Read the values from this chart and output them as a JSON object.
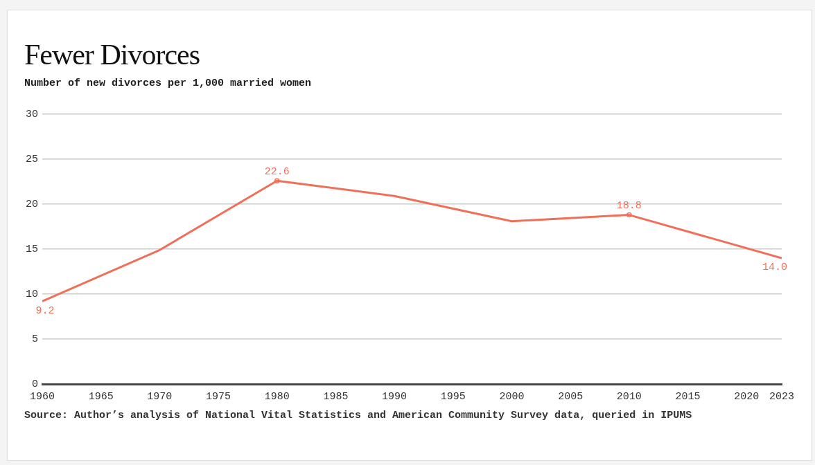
{
  "chart_data": {
    "type": "line",
    "title": "Fewer Divorces",
    "subtitle": "Number of new divorces per 1,000 married women",
    "x": [
      1960,
      1970,
      1980,
      1990,
      2000,
      2010,
      2023
    ],
    "series": [
      {
        "color": "#ef6f58",
        "values": [
          9.2,
          14.9,
          22.6,
          20.9,
          18.1,
          18.8,
          14.0
        ],
        "value_labels": [
          "9.2",
          null,
          "22.6",
          null,
          null,
          "18.8",
          "14.0"
        ]
      }
    ],
    "xlim": [
      1960,
      2023
    ],
    "xticks": [
      1960,
      1965,
      1970,
      1975,
      1980,
      1985,
      1990,
      1995,
      2000,
      2005,
      2010,
      2015,
      2020,
      2023
    ],
    "ylim": [
      0,
      30
    ],
    "yticks": [
      0,
      5,
      10,
      15,
      20,
      25,
      30
    ],
    "grid": "y",
    "legend": false,
    "line_style": "solid",
    "annotations": [
      "Source: Author’s analysis of National Vital Statistics and American Community Survey data, queried in IPUMS"
    ]
  }
}
